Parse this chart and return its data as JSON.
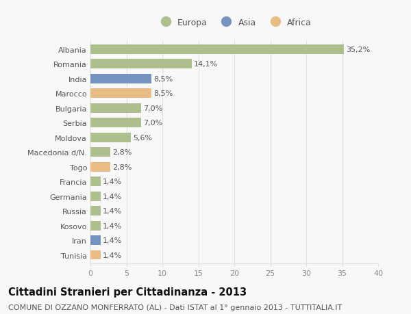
{
  "categories": [
    "Albania",
    "Romania",
    "India",
    "Marocco",
    "Bulgaria",
    "Serbia",
    "Moldova",
    "Macedonia d/N.",
    "Togo",
    "Francia",
    "Germania",
    "Russia",
    "Kosovo",
    "Iran",
    "Tunisia"
  ],
  "values": [
    35.2,
    14.1,
    8.5,
    8.5,
    7.0,
    7.0,
    5.6,
    2.8,
    2.8,
    1.4,
    1.4,
    1.4,
    1.4,
    1.4,
    1.4
  ],
  "labels": [
    "35,2%",
    "14,1%",
    "8,5%",
    "8,5%",
    "7,0%",
    "7,0%",
    "5,6%",
    "2,8%",
    "2,8%",
    "1,4%",
    "1,4%",
    "1,4%",
    "1,4%",
    "1,4%",
    "1,4%"
  ],
  "continents": [
    "Europa",
    "Europa",
    "Asia",
    "Africa",
    "Europa",
    "Europa",
    "Europa",
    "Europa",
    "Africa",
    "Europa",
    "Europa",
    "Europa",
    "Europa",
    "Asia",
    "Africa"
  ],
  "colors": {
    "Europa": "#adbf8c",
    "Asia": "#7494bf",
    "Africa": "#e8bc82"
  },
  "xlim": [
    0,
    40
  ],
  "xticks": [
    0,
    5,
    10,
    15,
    20,
    25,
    30,
    35,
    40
  ],
  "title": "Cittadini Stranieri per Cittadinanza - 2013",
  "subtitle": "COMUNE DI OZZANO MONFERRATO (AL) - Dati ISTAT al 1° gennaio 2013 - TUTTITALIA.IT",
  "background_color": "#f8f8f8",
  "grid_color": "#e0e0e0",
  "bar_height": 0.65,
  "label_fontsize": 8,
  "title_fontsize": 10.5,
  "subtitle_fontsize": 8,
  "tick_fontsize": 8,
  "legend_fontsize": 9
}
